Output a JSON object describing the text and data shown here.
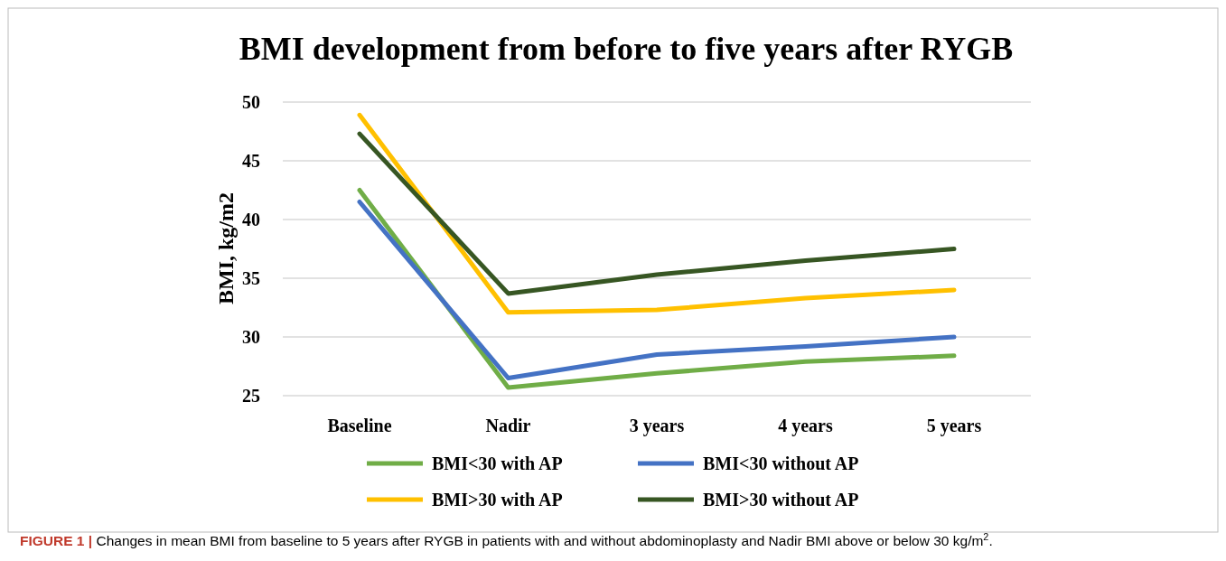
{
  "chart_data": {
    "type": "line",
    "title": "BMI development from before to five years after RYGB",
    "ylabel": "BMI, kg/m2",
    "categories": [
      "Baseline",
      "Nadir",
      "3 years",
      "4 years",
      "5 years"
    ],
    "series": [
      {
        "name": "BMI<30 with AP",
        "color": "#70ad47",
        "values": [
          42.5,
          25.7,
          26.9,
          27.9,
          28.4
        ]
      },
      {
        "name": "BMI<30 without AP",
        "color": "#4472c4",
        "values": [
          41.5,
          26.5,
          28.5,
          29.2,
          30.0
        ]
      },
      {
        "name": "BMI>30 with AP",
        "color": "#ffc000",
        "values": [
          48.9,
          32.1,
          32.3,
          33.3,
          34.0
        ]
      },
      {
        "name": "BMI>30 without AP",
        "color": "#375623",
        "values": [
          47.3,
          33.7,
          35.3,
          36.5,
          37.5
        ]
      }
    ],
    "ylim": [
      25,
      50
    ],
    "yticks": [
      25,
      30,
      35,
      40,
      45,
      50
    ],
    "grid": "y",
    "legend": "bottom",
    "marker": "none",
    "line_style": "solid",
    "annotations": [
      "FIGURE 1 | Changes in mean BMI from baseline to 5 years after RYGB in patients with and without abdominoplasty and Nadir BMI above or below 30 kg/m$^{2}$."
    ]
  }
}
